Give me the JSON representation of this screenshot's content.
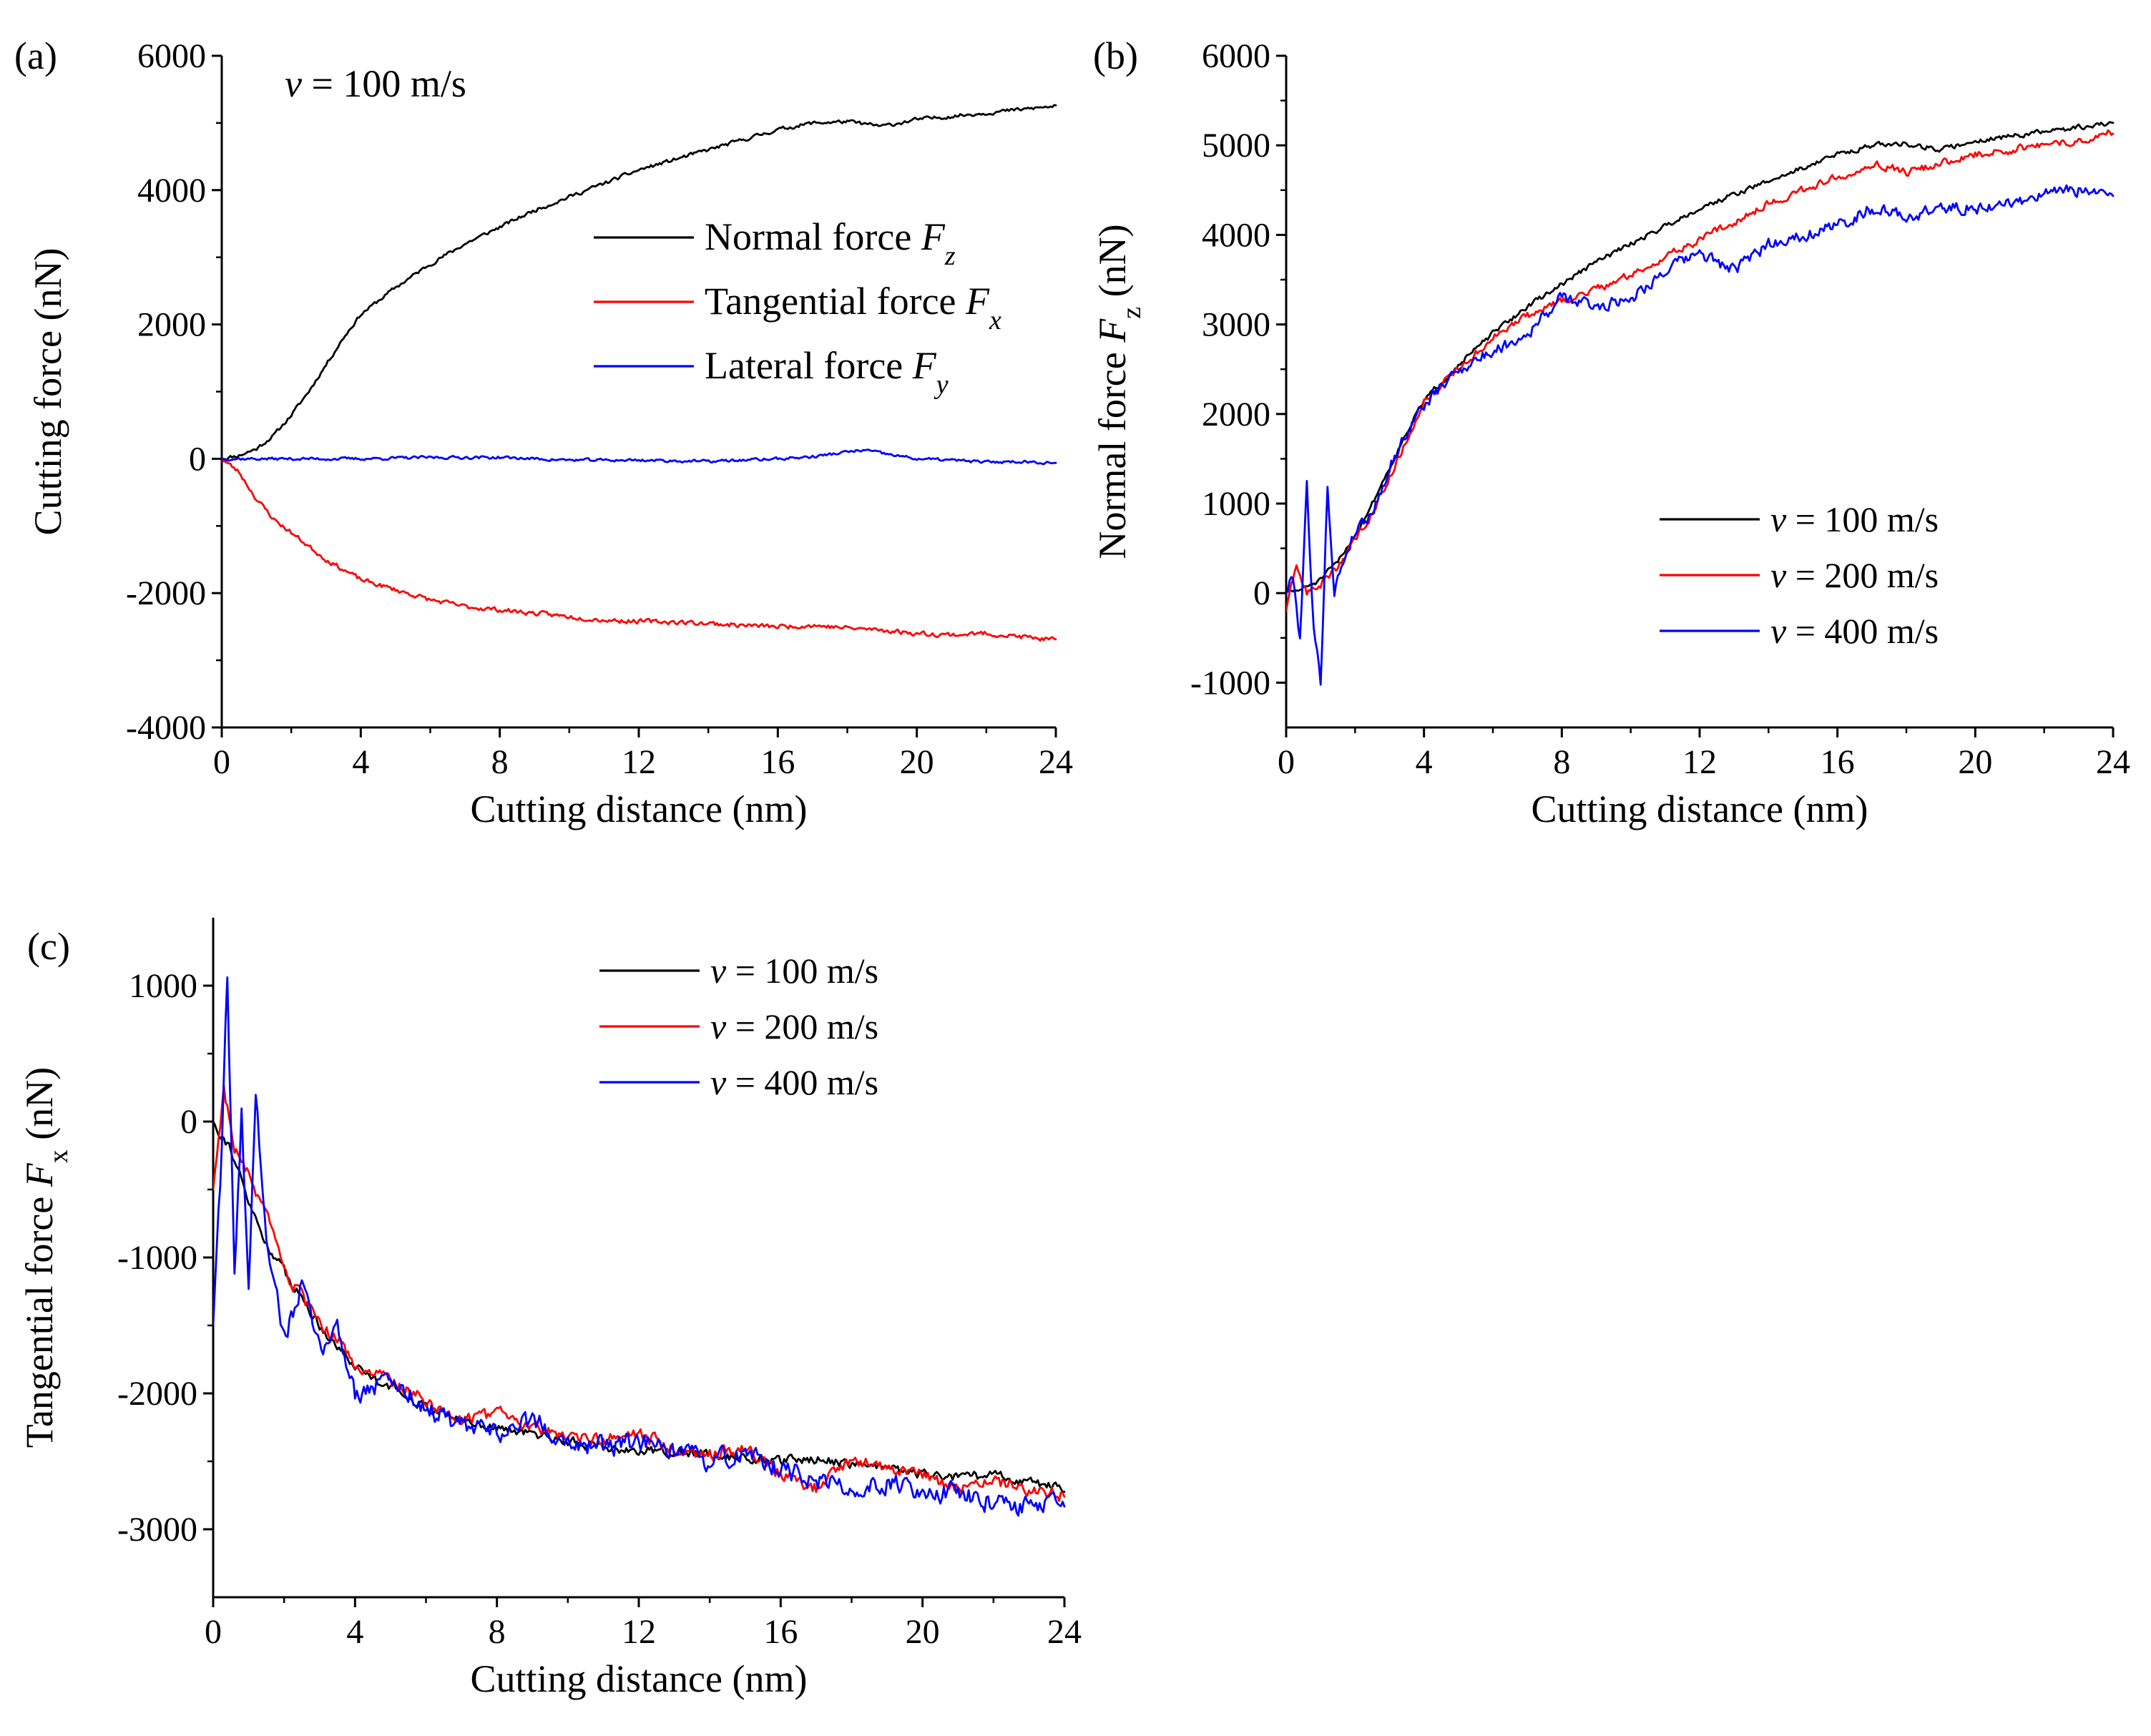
{
  "figure": {
    "panels": [
      "(a)",
      "(b)",
      "(c)"
    ]
  },
  "chart_data": [
    {
      "id": "a",
      "type": "line",
      "panel_label": "(a)",
      "annotation": {
        "italic": "v",
        "rest": " = 100 m/s"
      },
      "xlabel": "Cutting distance (nm)",
      "ylabel": "Cutting force (nN)",
      "xlim": [
        0,
        24
      ],
      "ylim": [
        -4000,
        6000
      ],
      "xticks": [
        0,
        4,
        8,
        12,
        16,
        20,
        24
      ],
      "yticks": [
        -4000,
        -2000,
        0,
        2000,
        4000,
        6000
      ],
      "legend": "top-right",
      "series": [
        {
          "name": "Normal force",
          "sym": "F",
          "sub": "z",
          "color": "#000000",
          "noise": 45,
          "seed": 11,
          "x": [
            0,
            0.5,
            1,
            1.5,
            2,
            2.5,
            3,
            3.5,
            4,
            5,
            6,
            7,
            8,
            9,
            10,
            11,
            12,
            13,
            14,
            15,
            16,
            17,
            18,
            19,
            20,
            21,
            22,
            23,
            24
          ],
          "y": [
            0,
            50,
            150,
            350,
            650,
            1000,
            1400,
            1800,
            2150,
            2550,
            2900,
            3200,
            3450,
            3700,
            3900,
            4100,
            4300,
            4450,
            4600,
            4750,
            4900,
            5000,
            5020,
            4950,
            5050,
            5100,
            5150,
            5200,
            5250
          ]
        },
        {
          "name": "Tangential force",
          "sym": "F",
          "sub": "x",
          "color": "#ff0000",
          "noise": 55,
          "seed": 23,
          "x": [
            0,
            0.5,
            1,
            1.5,
            2,
            2.5,
            3,
            3.5,
            4,
            5,
            6,
            7,
            8,
            9,
            10,
            11,
            12,
            13,
            14,
            15,
            16,
            17,
            18,
            19,
            20,
            21,
            22,
            23,
            24
          ],
          "y": [
            0,
            -200,
            -600,
            -900,
            -1100,
            -1300,
            -1500,
            -1650,
            -1800,
            -1950,
            -2100,
            -2200,
            -2250,
            -2300,
            -2350,
            -2400,
            -2420,
            -2430,
            -2450,
            -2480,
            -2500,
            -2480,
            -2520,
            -2550,
            -2600,
            -2620,
            -2600,
            -2650,
            -2700
          ]
        },
        {
          "name": "Lateral force",
          "sym": "F",
          "sub": "y",
          "color": "#0000ff",
          "noise": 35,
          "seed": 37,
          "x": [
            0,
            2,
            4,
            6,
            8,
            10,
            12,
            14,
            16,
            17,
            18,
            18.5,
            19,
            20,
            21,
            22,
            23,
            24
          ],
          "y": [
            0,
            0,
            0,
            20,
            20,
            -20,
            -20,
            -40,
            0,
            30,
            100,
            130,
            80,
            0,
            -20,
            -50,
            -40,
            -60
          ]
        }
      ]
    },
    {
      "id": "b",
      "type": "line",
      "panel_label": "(b)",
      "xlabel": "Cutting distance (nm)",
      "ylabel": {
        "pre": "Normal force ",
        "sym": "F",
        "sub": "z",
        "post": " (nN)"
      },
      "xlim": [
        0,
        24
      ],
      "ylim": [
        -1500,
        6000
      ],
      "xticks": [
        0,
        4,
        8,
        12,
        16,
        20,
        24
      ],
      "yticks": [
        -1000,
        0,
        1000,
        2000,
        3000,
        4000,
        5000,
        6000
      ],
      "legend": "center-right",
      "series": [
        {
          "name": "v = 100 m/s",
          "label_v": "v",
          "label_rest": " = 100 m/s",
          "color": "#000000",
          "noise": 45,
          "seed": 51,
          "x": [
            0,
            0.5,
            1,
            1.5,
            2,
            2.5,
            3,
            3.5,
            4,
            5,
            6,
            7,
            8,
            9,
            10,
            11,
            12,
            13,
            14,
            15,
            16,
            17,
            18,
            19,
            20,
            21,
            22,
            23,
            24
          ],
          "y": [
            0,
            50,
            150,
            350,
            650,
            1000,
            1400,
            1800,
            2150,
            2550,
            2900,
            3200,
            3450,
            3700,
            3900,
            4100,
            4300,
            4450,
            4600,
            4750,
            4900,
            5000,
            5020,
            4950,
            5050,
            5100,
            5150,
            5200,
            5250
          ]
        },
        {
          "name": "v = 200 m/s",
          "label_v": "v",
          "label_rest": " = 200 m/s",
          "color": "#ff0000",
          "noise": 70,
          "seed": 63,
          "x": [
            0,
            0.3,
            0.6,
            1,
            1.5,
            2,
            2.5,
            3,
            3.5,
            4,
            5,
            6,
            7,
            8,
            9,
            10,
            11,
            12,
            13,
            14,
            15,
            16,
            17,
            18,
            19,
            20,
            21,
            22,
            23,
            24
          ],
          "y": [
            -200,
            300,
            0,
            100,
            300,
            600,
            900,
            1300,
            1700,
            2150,
            2500,
            2850,
            3100,
            3250,
            3400,
            3550,
            3750,
            3950,
            4150,
            4350,
            4500,
            4650,
            4800,
            4700,
            4800,
            4900,
            4950,
            5000,
            5050,
            5150
          ]
        },
        {
          "name": "v = 400 m/s",
          "label_v": "v",
          "label_rest": " = 400 m/s",
          "color": "#0000ff",
          "noise": 110,
          "seed": 79,
          "x": [
            0,
            0.2,
            0.4,
            0.6,
            0.8,
            1.0,
            1.2,
            1.4,
            1.6,
            2,
            2.5,
            3,
            3.5,
            4,
            5,
            6,
            7,
            8,
            9,
            10,
            11,
            12,
            13,
            14,
            15,
            16,
            17,
            18,
            19,
            20,
            21,
            22,
            23,
            24
          ],
          "y": [
            0,
            200,
            -500,
            1200,
            -400,
            -1000,
            1200,
            0,
            300,
            700,
            900,
            1400,
            1800,
            2100,
            2500,
            2700,
            2900,
            3300,
            3200,
            3300,
            3600,
            3800,
            3600,
            3900,
            4000,
            4100,
            4300,
            4200,
            4300,
            4300,
            4350,
            4450,
            4500,
            4450
          ]
        }
      ]
    },
    {
      "id": "c",
      "type": "line",
      "panel_label": "(c)",
      "xlabel": "Cutting distance (nm)",
      "ylabel": {
        "pre": "Tangential force ",
        "sym": "F",
        "sub": "x",
        "post": " (nN)"
      },
      "xlim": [
        0,
        24
      ],
      "ylim": [
        -3500,
        1500
      ],
      "xticks": [
        0,
        4,
        8,
        12,
        16,
        20,
        24
      ],
      "yticks": [
        -3000,
        -2000,
        -1000,
        0,
        1000
      ],
      "legend": "top-right",
      "series": [
        {
          "name": "v = 100 m/s",
          "label_v": "v",
          "label_rest": " = 100 m/s",
          "color": "#000000",
          "noise": 55,
          "seed": 91,
          "x": [
            0,
            0.5,
            1,
            1.5,
            2,
            2.5,
            3,
            3.5,
            4,
            5,
            6,
            7,
            8,
            9,
            10,
            11,
            12,
            13,
            14,
            15,
            16,
            17,
            18,
            19,
            20,
            21,
            22,
            23,
            24
          ],
          "y": [
            0,
            -200,
            -600,
            -900,
            -1100,
            -1300,
            -1500,
            -1650,
            -1800,
            -1950,
            -2100,
            -2200,
            -2250,
            -2300,
            -2350,
            -2400,
            -2420,
            -2430,
            -2450,
            -2480,
            -2500,
            -2480,
            -2520,
            -2550,
            -2600,
            -2620,
            -2600,
            -2650,
            -2700
          ]
        },
        {
          "name": "v = 200 m/s",
          "label_v": "v",
          "label_rest": " = 200 m/s",
          "color": "#ff0000",
          "noise": 75,
          "seed": 103,
          "x": [
            0,
            0.3,
            0.6,
            1,
            1.5,
            2,
            2.5,
            3,
            3.5,
            4,
            5,
            6,
            7,
            8,
            9,
            10,
            11,
            12,
            13,
            14,
            15,
            16,
            17,
            18,
            19,
            20,
            21,
            22,
            23,
            24
          ],
          "y": [
            -500,
            250,
            -200,
            -400,
            -700,
            -1100,
            -1300,
            -1500,
            -1600,
            -1800,
            -1900,
            -2050,
            -2200,
            -2150,
            -2250,
            -2300,
            -2350,
            -2300,
            -2400,
            -2450,
            -2400,
            -2600,
            -2700,
            -2500,
            -2550,
            -2600,
            -2700,
            -2650,
            -2700,
            -2750
          ]
        },
        {
          "name": "v = 400 m/s",
          "label_v": "v",
          "label_rest": " = 400 m/s",
          "color": "#0000ff",
          "noise": 120,
          "seed": 117,
          "x": [
            0,
            0.2,
            0.4,
            0.6,
            0.8,
            1.0,
            1.2,
            1.5,
            2,
            2.5,
            3,
            3.5,
            4,
            5,
            6,
            7,
            8,
            9,
            10,
            11,
            12,
            13,
            14,
            15,
            16,
            17,
            18,
            19,
            20,
            21,
            22,
            23,
            24
          ],
          "y": [
            -1500,
            -500,
            1100,
            -1200,
            100,
            -1200,
            150,
            -800,
            -1600,
            -1200,
            -1700,
            -1500,
            -2000,
            -1900,
            -2100,
            -2250,
            -2300,
            -2200,
            -2350,
            -2400,
            -2350,
            -2450,
            -2500,
            -2450,
            -2550,
            -2650,
            -2700,
            -2650,
            -2700,
            -2750,
            -2800,
            -2850,
            -2800
          ]
        }
      ]
    }
  ]
}
